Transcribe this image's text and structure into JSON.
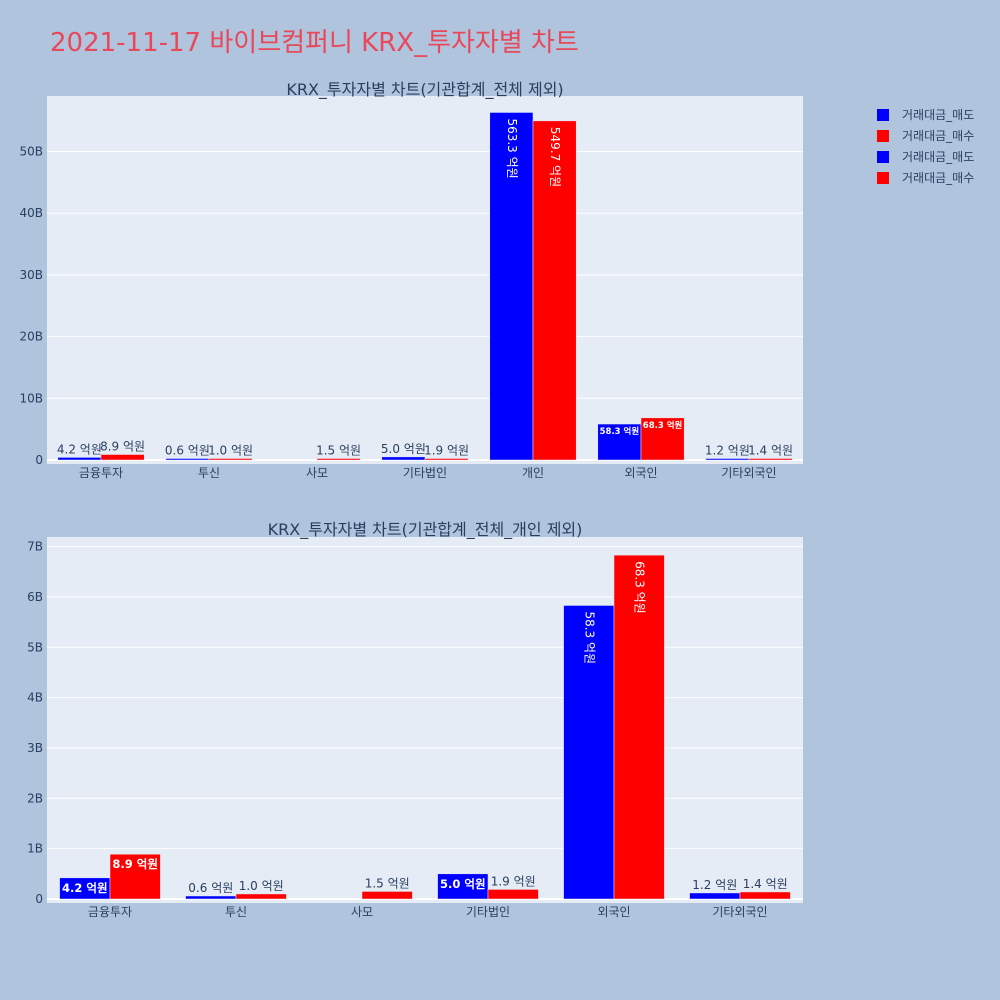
{
  "page_title": "2021-11-17 바이브컴퍼니 KRX_투자자별 차트",
  "legend": [
    {
      "label": "거래대금_매도",
      "color": "#0000ff"
    },
    {
      "label": "거래대금_매수",
      "color": "#ff0000"
    },
    {
      "label": "거래대금_매도",
      "color": "#0000ff"
    },
    {
      "label": "거래대금_매수",
      "color": "#ff0000"
    }
  ],
  "chart_data": [
    {
      "type": "bar",
      "title": "KRX_투자자별 차트(기관합계_전체 제외)",
      "categories": [
        "금융투자",
        "투신",
        "사모",
        "기타법인",
        "개인",
        "외국인",
        "기타외국인"
      ],
      "series": [
        {
          "name": "거래대금_매도",
          "color": "#0000ff",
          "values": [
            420000000,
            60000000,
            0,
            500000000,
            56330000000,
            5830000000,
            120000000
          ],
          "labels": [
            "4.2 억원",
            "0.6 억원",
            "",
            "5.0 억원",
            "563.3 억원",
            "58.3 억원",
            "1.2 억원"
          ]
        },
        {
          "name": "거래대금_매수",
          "color": "#ff0000",
          "values": [
            890000000,
            100000000,
            150000000,
            190000000,
            54970000000,
            6830000000,
            140000000
          ],
          "labels": [
            "8.9 억원",
            "1.0 억원",
            "1.5 억원",
            "1.9 억원",
            "549.7 억원",
            "68.3 억원",
            "1.4 억원"
          ]
        }
      ],
      "ylim": [
        0,
        59000000000
      ],
      "yticks": [
        0,
        10000000000,
        20000000000,
        30000000000,
        40000000000,
        50000000000
      ],
      "ytick_labels": [
        "0",
        "10B",
        "20B",
        "30B",
        "40B",
        "50B"
      ],
      "grid": true
    },
    {
      "type": "bar",
      "title": "KRX_투자자별 차트(기관합계_전체_개인 제외)",
      "categories": [
        "금융투자",
        "투신",
        "사모",
        "기타법인",
        "외국인",
        "기타외국인"
      ],
      "series": [
        {
          "name": "거래대금_매도",
          "color": "#0000ff",
          "values": [
            420000000,
            60000000,
            0,
            500000000,
            5830000000,
            120000000
          ],
          "labels": [
            "4.2 억원",
            "0.6 억원",
            "",
            "5.0 억원",
            "58.3 억원",
            "1.2 억원"
          ]
        },
        {
          "name": "거래대금_매수",
          "color": "#ff0000",
          "values": [
            890000000,
            100000000,
            150000000,
            190000000,
            6830000000,
            140000000
          ],
          "labels": [
            "8.9 억원",
            "1.0 억원",
            "1.5 억원",
            "1.9 억원",
            "68.3 억원",
            "1.4 억원"
          ]
        }
      ],
      "ylim": [
        0,
        7190000000
      ],
      "yticks": [
        0,
        1000000000,
        2000000000,
        3000000000,
        4000000000,
        5000000000,
        6000000000,
        7000000000
      ],
      "ytick_labels": [
        "0",
        "1B",
        "2B",
        "3B",
        "4B",
        "5B",
        "6B",
        "7B"
      ],
      "grid": true
    }
  ]
}
